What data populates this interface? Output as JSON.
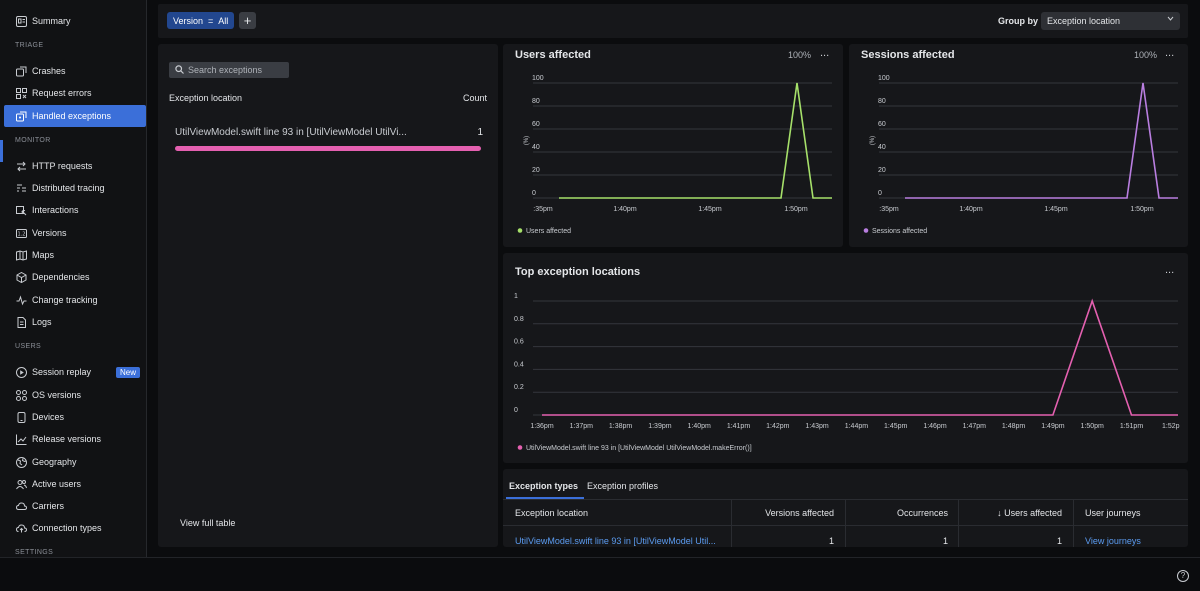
{
  "sidebar": {
    "summary": "Summary",
    "sections": {
      "triage": "TRIAGE",
      "monitor": "MONITOR",
      "users": "USERS",
      "settings": "SETTINGS"
    },
    "triage_items": [
      "Crashes",
      "Request errors",
      "Handled exceptions"
    ],
    "monitor_items": [
      "HTTP requests",
      "Distributed tracing",
      "Interactions",
      "Versions",
      "Maps",
      "Dependencies",
      "Change tracking",
      "Logs"
    ],
    "users_items": [
      "Session replay",
      "OS versions",
      "Devices",
      "Release versions",
      "Geography",
      "Active users",
      "Carriers",
      "Connection types"
    ],
    "new_badge": "New",
    "active_item": "Handled exceptions",
    "icons": {
      "summary": "summary-icon",
      "crashes": "crash-icon",
      "request_errors": "request-errors-icon",
      "handled": "handled-exception-icon",
      "http": "http-requests-icon",
      "tracing": "tracing-icon",
      "interactions": "interactions-icon",
      "versions": "versions-icon",
      "maps": "map-icon",
      "dependencies": "dependencies-icon",
      "change": "change-tracking-icon",
      "logs": "logs-icon",
      "session": "play-icon",
      "os": "grid-icon",
      "devices": "device-icon",
      "release": "chart-icon",
      "geography": "globe-icon",
      "active_users": "users-icon",
      "carriers": "cloud-icon",
      "connection": "cloud-upload-icon"
    }
  },
  "filter": {
    "chip_key": "Version",
    "chip_op": "=",
    "chip_value": "All",
    "add_label": "+",
    "groupby_label": "Group by",
    "groupby_value": "Exception location"
  },
  "left_panel": {
    "search_placeholder": "Search exceptions",
    "col_location": "Exception location",
    "col_count": "Count",
    "row_location": "UtilViewModel.swift line 93 in [UtilViewModel UtilVi...",
    "row_count": "1",
    "view_full": "View full table"
  },
  "users_chart": {
    "title": "Users affected",
    "pct": "100%",
    "menu": "...",
    "legend": "Users affected",
    "color": "#a6e06a"
  },
  "sessions_chart": {
    "title": "Sessions affected",
    "pct": "100%",
    "menu": "...",
    "legend": "Sessions affected",
    "color": "#b97ee0"
  },
  "top_chart": {
    "title": "Top exception locations",
    "menu": "...",
    "legend": "UtilViewModel.swift line 93 in [UtilViewModel UtilViewModel.makeError()]",
    "color": "#e460b0"
  },
  "chart_data": [
    {
      "type": "line",
      "title": "Users affected",
      "ylabel": "(%)",
      "ylim": [
        0,
        100
      ],
      "yticks": [
        "100",
        "80",
        "60",
        "40",
        "20",
        "0"
      ],
      "xticks": [
        ":35pm",
        "1:40pm",
        "1:45pm",
        "1:50pm"
      ],
      "grid": true,
      "legend": "bottom-left",
      "series": [
        {
          "name": "Users affected",
          "x": [
            ":35pm",
            "1:40pm",
            "1:45pm",
            "1:49pm",
            "1:50pm",
            "1:51pm",
            "1:52pm"
          ],
          "values": [
            0,
            0,
            0,
            0,
            100,
            0,
            0
          ]
        }
      ]
    },
    {
      "type": "line",
      "title": "Sessions affected",
      "ylabel": "(%)",
      "ylim": [
        0,
        100
      ],
      "yticks": [
        "100",
        "80",
        "60",
        "40",
        "20",
        "0"
      ],
      "xticks": [
        ":35pm",
        "1:40pm",
        "1:45pm",
        "1:50pm"
      ],
      "grid": true,
      "legend": "bottom-left",
      "series": [
        {
          "name": "Sessions affected",
          "x": [
            ":35pm",
            "1:40pm",
            "1:45pm",
            "1:49pm",
            "1:50pm",
            "1:51pm",
            "1:52pm"
          ],
          "values": [
            0,
            0,
            0,
            0,
            100,
            0,
            0
          ]
        }
      ]
    },
    {
      "type": "line",
      "title": "Top exception locations",
      "ylim": [
        0,
        1
      ],
      "yticks": [
        "1",
        "0.8",
        "0.6",
        "0.4",
        "0.2",
        "0"
      ],
      "xticks": [
        "1:36pm",
        "1:37pm",
        "1:38pm",
        "1:39pm",
        "1:40pm",
        "1:41pm",
        "1:42pm",
        "1:43pm",
        "1:44pm",
        "1:45pm",
        "1:46pm",
        "1:47pm",
        "1:48pm",
        "1:49pm",
        "1:50pm",
        "1:51pm",
        "1:52p"
      ],
      "grid": true,
      "legend": "bottom-left",
      "series": [
        {
          "name": "UtilViewModel.swift line 93 in [UtilViewModel UtilViewModel.makeError()]",
          "x": [
            "1:36pm",
            "1:37pm",
            "1:38pm",
            "1:39pm",
            "1:40pm",
            "1:41pm",
            "1:42pm",
            "1:43pm",
            "1:44pm",
            "1:45pm",
            "1:46pm",
            "1:47pm",
            "1:48pm",
            "1:49pm",
            "1:50pm",
            "1:51pm",
            "1:52p"
          ],
          "values": [
            0,
            0,
            0,
            0,
            0,
            0,
            0,
            0,
            0,
            0,
            0,
            0,
            0,
            0,
            1,
            0,
            0
          ]
        }
      ]
    }
  ],
  "tabs": {
    "types": "Exception types",
    "profiles": "Exception profiles"
  },
  "table": {
    "headers": [
      "Exception location",
      "Versions affected",
      "Occurrences",
      "↓ Users affected",
      "User journeys"
    ],
    "row": {
      "location": "UtilViewModel.swift line 93 in [UtilViewModel Util...",
      "versions": "1",
      "occurrences": "1",
      "users": "1",
      "journeys": "View journeys"
    }
  },
  "help": "?"
}
